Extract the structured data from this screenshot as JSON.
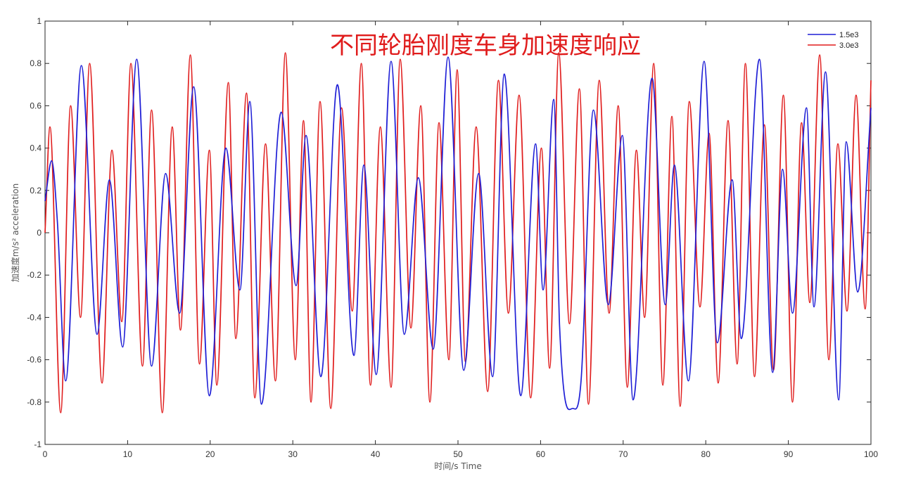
{
  "chart_data": {
    "type": "line",
    "title": "不同轮胎刚度车身加速度响应",
    "xlabel": "时间/s Time",
    "ylabel": "加速度m/s² acceleration",
    "xlim": [
      0,
      100
    ],
    "ylim": [
      -1,
      1
    ],
    "x_ticks": [
      0,
      10,
      20,
      30,
      40,
      50,
      60,
      70,
      80,
      90,
      100
    ],
    "x_tick_labels": [
      "0",
      "10",
      "20",
      "30",
      "40",
      "50",
      "60",
      "70",
      "80",
      "90",
      "100"
    ],
    "y_ticks": [
      1,
      0.8,
      0.6,
      0.4,
      0.2,
      0,
      -0.2,
      -0.4,
      -0.6,
      -0.8,
      -1
    ],
    "y_tick_labels": [
      "1",
      "0.8",
      "0.6",
      "0.4",
      "0.2",
      "0",
      "-0.2",
      "-0.4",
      "-0.6",
      "-0.8",
      "-1"
    ],
    "grid": false,
    "legend_position": "top-right",
    "series": [
      {
        "name": "1.5e3",
        "color": "#1f1fd6",
        "x": [
          0,
          0.8,
          1.5,
          2.5,
          4.4,
          6.3,
          7.8,
          9.4,
          11.1,
          12.9,
          14.6,
          16.3,
          18.0,
          19.9,
          21.9,
          23.6,
          24.8,
          26.2,
          28.6,
          30.4,
          31.6,
          33.4,
          35.4,
          37.4,
          38.6,
          40.1,
          41.9,
          43.5,
          45.2,
          47.0,
          48.8,
          50.7,
          52.5,
          54.2,
          55.6,
          57.6,
          59.4,
          60.3,
          61.6,
          62.3,
          63.9,
          64.9,
          66.4,
          68.2,
          69.9,
          71.2,
          73.5,
          75.1,
          76.2,
          77.9,
          79.8,
          81.4,
          83.2,
          84.3,
          86.5,
          88.1,
          89.3,
          90.5,
          92.2,
          93.1,
          94.5,
          96.1,
          97.0,
          98.4,
          100
        ],
        "y": [
          0.15,
          0.34,
          0.05,
          -0.7,
          0.79,
          -0.48,
          0.25,
          -0.54,
          0.82,
          -0.63,
          0.28,
          -0.38,
          0.69,
          -0.77,
          0.4,
          -0.27,
          0.62,
          -0.81,
          0.57,
          -0.25,
          0.46,
          -0.68,
          0.7,
          -0.58,
          0.32,
          -0.67,
          0.81,
          -0.48,
          0.26,
          -0.55,
          0.83,
          -0.65,
          0.28,
          -0.68,
          0.75,
          -0.77,
          0.42,
          -0.27,
          0.63,
          -0.44,
          -0.83,
          -0.7,
          0.58,
          -0.34,
          0.46,
          -0.79,
          0.73,
          -0.34,
          0.32,
          -0.7,
          0.81,
          -0.52,
          0.25,
          -0.5,
          0.82,
          -0.66,
          0.3,
          -0.38,
          0.59,
          -0.35,
          0.76,
          -0.79,
          0.43,
          -0.28,
          0.59
        ]
      },
      {
        "name": "3.0e3",
        "color": "#e01c1c",
        "x": [
          0,
          0.6,
          1.9,
          3.1,
          4.3,
          5.4,
          6.9,
          8.1,
          9.3,
          10.4,
          11.8,
          12.9,
          14.2,
          15.4,
          16.4,
          17.6,
          18.7,
          19.9,
          20.8,
          22.2,
          23.1,
          24.4,
          25.4,
          26.7,
          27.9,
          29.1,
          30.3,
          31.3,
          32.2,
          33.3,
          34.6,
          35.9,
          37.2,
          38.3,
          39.4,
          40.6,
          41.9,
          43.0,
          44.3,
          45.5,
          46.6,
          47.7,
          48.9,
          49.9,
          50.9,
          52.2,
          53.6,
          54.9,
          56.1,
          57.4,
          58.8,
          60.1,
          61.1,
          62.2,
          63.5,
          64.7,
          65.8,
          67.1,
          68.3,
          69.4,
          70.5,
          71.6,
          72.6,
          73.7,
          74.8,
          75.9,
          76.9,
          78.0,
          79.3,
          80.4,
          81.5,
          82.7,
          83.8,
          84.8,
          85.9,
          87.1,
          88.2,
          89.4,
          90.5,
          91.6,
          92.6,
          93.8,
          94.9,
          96.0,
          97.1,
          98.2,
          99.3,
          100
        ],
        "y": [
          0,
          0.5,
          -0.85,
          0.6,
          -0.4,
          0.8,
          -0.71,
          0.39,
          -0.42,
          0.8,
          -0.63,
          0.58,
          -0.85,
          0.5,
          -0.46,
          0.84,
          -0.62,
          0.39,
          -0.72,
          0.71,
          -0.5,
          0.66,
          -0.78,
          0.42,
          -0.7,
          0.85,
          -0.6,
          0.53,
          -0.8,
          0.62,
          -0.83,
          0.59,
          -0.37,
          0.8,
          -0.72,
          0.5,
          -0.73,
          0.82,
          -0.45,
          0.6,
          -0.8,
          0.52,
          -0.6,
          0.77,
          -0.61,
          0.5,
          -0.75,
          0.72,
          -0.38,
          0.65,
          -0.78,
          0.4,
          -0.64,
          0.85,
          -0.43,
          0.68,
          -0.81,
          0.72,
          -0.38,
          0.6,
          -0.73,
          0.39,
          -0.4,
          0.8,
          -0.72,
          0.55,
          -0.82,
          0.62,
          -0.35,
          0.47,
          -0.71,
          0.53,
          -0.62,
          0.8,
          -0.68,
          0.51,
          -0.65,
          0.65,
          -0.8,
          0.52,
          -0.33,
          0.84,
          -0.6,
          0.42,
          -0.37,
          0.65,
          -0.36,
          0.72
        ]
      }
    ]
  }
}
